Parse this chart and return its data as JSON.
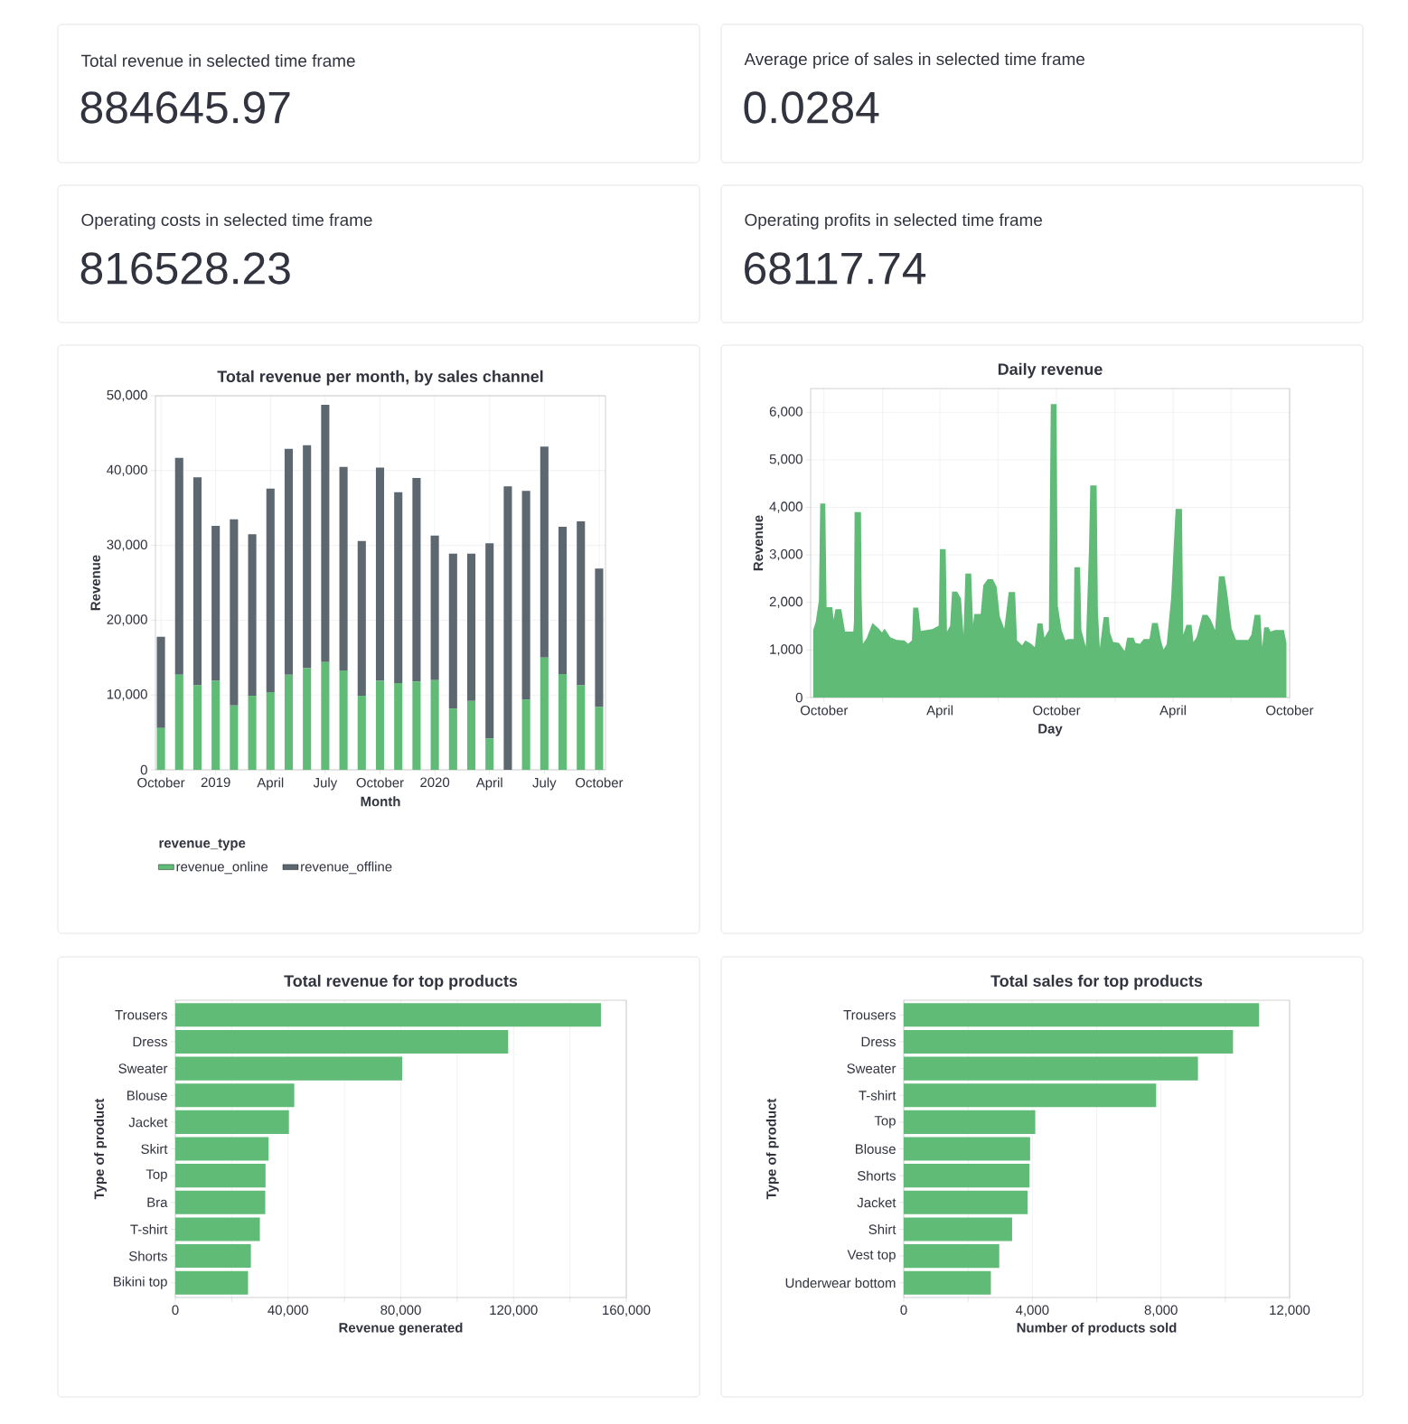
{
  "chart_data": [
    {
      "type": "other",
      "title": "Total revenue in selected time frame",
      "annotations": [
        "884645.97"
      ]
    },
    {
      "type": "other",
      "title": "Average price of sales in selected time frame",
      "annotations": [
        "0.0284"
      ]
    },
    {
      "type": "other",
      "title": "Operating costs in selected time frame",
      "annotations": [
        "816528.23"
      ]
    },
    {
      "type": "other",
      "title": "Operating profits in selected time frame",
      "annotations": [
        "68117.74"
      ]
    },
    {
      "type": "bar",
      "title": "Total revenue per month, by sales channel",
      "xlabel": "Month",
      "ylabel": "Revenue",
      "legend_title": "revenue_type",
      "stacked": true,
      "grid": true,
      "legend": "bottom",
      "categories": [
        "October",
        null,
        null,
        "2019",
        null,
        null,
        "April",
        null,
        null,
        "July",
        null,
        null,
        "October",
        null,
        null,
        "2020",
        null,
        null,
        "April",
        null,
        null,
        "July",
        null,
        null,
        "October"
      ],
      "series": [
        {
          "name": "revenue_online",
          "color": "#5fbb76",
          "values": [
            5600,
            12700,
            11300,
            11900,
            8600,
            9900,
            10400,
            12700,
            13600,
            14400,
            13300,
            9900,
            11900,
            11600,
            11800,
            12000,
            8200,
            9200,
            4200,
            0,
            9400,
            15000,
            12800,
            11300,
            8400
          ]
        },
        {
          "name": "revenue_offline",
          "color": "#5d6770",
          "values": [
            12200,
            29000,
            27800,
            20700,
            24900,
            21600,
            27200,
            30200,
            29800,
            34400,
            27200,
            20700,
            28500,
            25500,
            27200,
            19300,
            20700,
            19700,
            26100,
            37900,
            27900,
            28200,
            19700,
            21900,
            18500
          ]
        }
      ],
      "ylim": [
        0,
        50000
      ],
      "yticks": [
        0,
        {
          "value": 10000,
          "label": "10,000"
        },
        {
          "value": 20000,
          "label": "20,000"
        },
        {
          "value": 30000,
          "label": "30,000"
        },
        {
          "value": 40000,
          "label": "40,000"
        },
        {
          "value": 50000,
          "label": "50,000"
        }
      ]
    },
    {
      "type": "area",
      "title": "Daily revenue",
      "xlabel": "Day",
      "ylabel": "Revenue",
      "grid": true,
      "color": "#5fbb76",
      "x": [
        "2018-09-14",
        "2018-09-18",
        "2018-09-23",
        "2018-09-25",
        "2018-10-03",
        "2018-10-05",
        "2018-10-14",
        "2018-10-16",
        "2018-10-19",
        "2018-10-28",
        "2018-10-30",
        "2018-11-03",
        "2018-11-16",
        "2018-11-17",
        "2018-11-18",
        "2018-11-28",
        "2018-11-29",
        "2018-12-01",
        "2018-12-07",
        "2018-12-16",
        "2018-12-26",
        "2018-12-31",
        "2019-01-04",
        "2019-01-13",
        "2019-01-23",
        "2019-02-04",
        "2019-02-10",
        "2019-02-16",
        "2019-02-18",
        "2019-02-26",
        "2019-03-02",
        "2019-03-20",
        "2019-03-30",
        "2019-04-01",
        "2019-04-10",
        "2019-04-12",
        "2019-04-17",
        "2019-04-20",
        "2019-04-28",
        "2019-05-04",
        "2019-05-08",
        "2019-05-11",
        "2019-05-20",
        "2019-05-23",
        "2019-05-25",
        "2019-06-04",
        "2019-06-08",
        "2019-06-15",
        "2019-06-23",
        "2019-06-29",
        "2019-07-04",
        "2019-07-11",
        "2019-07-18",
        "2019-07-28",
        "2019-07-31",
        "2019-08-08",
        "2019-08-13",
        "2019-08-22",
        "2019-08-28",
        "2019-09-01",
        "2019-09-09",
        "2019-09-12",
        "2019-09-19",
        "2019-09-22",
        "2019-10-01",
        "2019-10-03",
        "2019-10-09",
        "2019-10-15",
        "2019-10-19",
        "2019-10-28",
        "2019-10-29",
        "2019-11-07",
        "2019-11-09",
        "2019-11-16",
        "2019-11-21",
        "2019-11-23",
        "2019-12-03",
        "2019-12-05",
        "2019-12-08",
        "2019-12-14",
        "2019-12-22",
        "2019-12-24",
        "2019-12-29",
        "2020-01-07",
        "2020-01-16",
        "2020-01-20",
        "2020-01-30",
        "2020-02-02",
        "2020-02-09",
        "2020-02-15",
        "2020-02-24",
        "2020-02-28",
        "2020-03-08",
        "2020-03-13",
        "2020-03-17",
        "2020-03-22",
        "2020-03-29",
        "2020-04-05",
        "2020-04-15",
        "2020-04-17",
        "2020-04-22",
        "2020-04-30",
        "2020-05-03",
        "2020-05-08",
        "2020-05-17",
        "2020-05-25",
        "2020-05-30",
        "2020-06-06",
        "2020-06-12",
        "2020-06-21",
        "2020-06-25",
        "2020-07-02",
        "2020-07-09",
        "2020-07-28",
        "2020-08-02",
        "2020-08-07",
        "2020-08-16",
        "2020-08-19",
        "2020-08-22",
        "2020-08-29",
        "2020-09-01",
        "2020-09-08",
        "2020-09-22",
        "2020-09-26"
      ],
      "values": [
        1420,
        1590,
        2050,
        4080,
        4080,
        1900,
        1900,
        1640,
        1860,
        1860,
        1710,
        1390,
        1390,
        1610,
        3900,
        3900,
        2140,
        1130,
        1250,
        1570,
        1450,
        1370,
        1450,
        1270,
        1210,
        1200,
        1130,
        1200,
        1890,
        1890,
        1400,
        1440,
        1510,
        3120,
        3120,
        1390,
        1510,
        2230,
        2230,
        2080,
        1320,
        2610,
        2610,
        1540,
        1760,
        1760,
        2360,
        2490,
        2490,
        2330,
        1700,
        1450,
        2220,
        2220,
        1200,
        1100,
        1200,
        1130,
        1060,
        1560,
        1560,
        1260,
        1420,
        6170,
        6170,
        1930,
        1420,
        1200,
        1230,
        1230,
        2740,
        2740,
        1420,
        1070,
        3120,
        4460,
        4460,
        1830,
        1040,
        1690,
        1690,
        1370,
        1170,
        1150,
        980,
        1260,
        1260,
        1150,
        1130,
        1230,
        1230,
        1570,
        1570,
        1200,
        1010,
        1120,
        2100,
        3970,
        3970,
        1320,
        1530,
        1530,
        1170,
        1270,
        1740,
        1740,
        1640,
        1420,
        2550,
        2550,
        2200,
        1450,
        1210,
        1210,
        1320,
        1740,
        1740,
        1070,
        1480,
        1480,
        1390,
        1420,
        1420,
        1150
      ],
      "xlim": [
        "2018-09-10",
        "2020-10-01"
      ],
      "xticks": [
        {
          "value": "2018-10-01",
          "label": "October"
        },
        {
          "value": "2019-01-01",
          "label": null
        },
        {
          "value": "2019-04-01",
          "label": "April"
        },
        {
          "value": "2019-07-01",
          "label": null
        },
        {
          "value": "2019-10-01",
          "label": "October"
        },
        {
          "value": "2020-01-01",
          "label": null
        },
        {
          "value": "2020-04-01",
          "label": "April"
        },
        {
          "value": "2020-07-01",
          "label": null
        },
        {
          "value": "2020-10-01",
          "label": "October"
        }
      ],
      "ylim": [
        0,
        6500
      ],
      "yticks": [
        0,
        {
          "value": 1000,
          "label": "1,000"
        },
        {
          "value": 2000,
          "label": "2,000"
        },
        {
          "value": 3000,
          "label": "3,000"
        },
        {
          "value": 4000,
          "label": "4,000"
        },
        {
          "value": 5000,
          "label": "5,000"
        },
        {
          "value": 6000,
          "label": "6,000"
        }
      ]
    },
    {
      "type": "bar",
      "orientation": "horizontal",
      "title": "Total revenue for top products",
      "xlabel": "Revenue generated",
      "ylabel": "Type of product",
      "grid": "x",
      "color": "#5fbb76",
      "categories": [
        "Trousers",
        "Dress",
        "Sweater",
        "Blouse",
        "Jacket",
        "Skirt",
        "Top",
        "Bra",
        "T-shirt",
        "Shorts",
        "Bikini top"
      ],
      "values": [
        151000,
        118100,
        80500,
        42200,
        40300,
        33100,
        32000,
        31900,
        30000,
        26800,
        25800
      ],
      "xlim": [
        0,
        160000
      ],
      "xticks": [
        0,
        {
          "value": 20000,
          "label": null
        },
        {
          "value": 40000,
          "label": "40,000"
        },
        {
          "value": 60000,
          "label": null
        },
        {
          "value": 80000,
          "label": "80,000"
        },
        {
          "value": 100000,
          "label": null
        },
        {
          "value": 120000,
          "label": "120,000"
        },
        {
          "value": 140000,
          "label": null
        },
        {
          "value": 160000,
          "label": "160,000"
        }
      ]
    },
    {
      "type": "bar",
      "orientation": "horizontal",
      "title": "Total sales for top products",
      "xlabel": "Number of products sold",
      "ylabel": "Type of product",
      "grid": "x",
      "color": "#5fbb76",
      "categories": [
        "Trousers",
        "Dress",
        "Sweater",
        "T-shirt",
        "Top",
        "Blouse",
        "Shorts",
        "Jacket",
        "Shirt",
        "Vest top",
        "Underwear bottom"
      ],
      "values": [
        11050,
        10240,
        9150,
        7850,
        4090,
        3930,
        3910,
        3850,
        3370,
        2970,
        2710
      ],
      "xlim": [
        0,
        12000
      ],
      "xticks": [
        0,
        {
          "value": 2000,
          "label": null
        },
        {
          "value": 4000,
          "label": "4,000"
        },
        {
          "value": 6000,
          "label": null
        },
        {
          "value": 8000,
          "label": "8,000"
        },
        {
          "value": 10000,
          "label": null
        },
        {
          "value": 12000,
          "label": "12,000"
        }
      ]
    }
  ]
}
